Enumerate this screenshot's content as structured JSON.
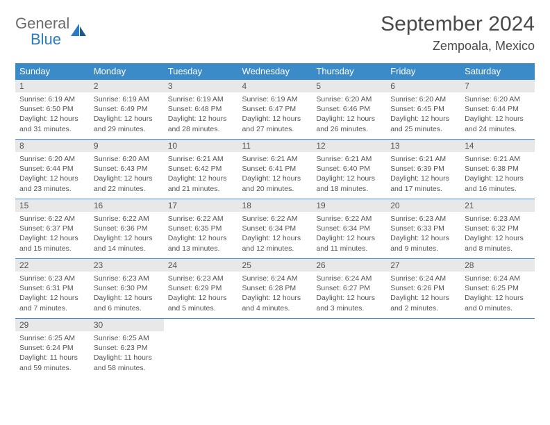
{
  "logo": {
    "word1": "General",
    "word2": "Blue"
  },
  "title": "September 2024",
  "location": "Zempoala, Mexico",
  "colors": {
    "header_bg": "#3b8bc8",
    "header_fg": "#ffffff",
    "daynum_bg": "#e8e8e8",
    "border": "#3b8bc8",
    "text": "#4a4a4a",
    "logo_gray": "#6b6b6b",
    "logo_blue": "#2a7bbf"
  },
  "daysOfWeek": [
    "Sunday",
    "Monday",
    "Tuesday",
    "Wednesday",
    "Thursday",
    "Friday",
    "Saturday"
  ],
  "weeks": [
    [
      {
        "n": "1",
        "sunrise": "Sunrise: 6:19 AM",
        "sunset": "Sunset: 6:50 PM",
        "daylight": "Daylight: 12 hours and 31 minutes."
      },
      {
        "n": "2",
        "sunrise": "Sunrise: 6:19 AM",
        "sunset": "Sunset: 6:49 PM",
        "daylight": "Daylight: 12 hours and 29 minutes."
      },
      {
        "n": "3",
        "sunrise": "Sunrise: 6:19 AM",
        "sunset": "Sunset: 6:48 PM",
        "daylight": "Daylight: 12 hours and 28 minutes."
      },
      {
        "n": "4",
        "sunrise": "Sunrise: 6:19 AM",
        "sunset": "Sunset: 6:47 PM",
        "daylight": "Daylight: 12 hours and 27 minutes."
      },
      {
        "n": "5",
        "sunrise": "Sunrise: 6:20 AM",
        "sunset": "Sunset: 6:46 PM",
        "daylight": "Daylight: 12 hours and 26 minutes."
      },
      {
        "n": "6",
        "sunrise": "Sunrise: 6:20 AM",
        "sunset": "Sunset: 6:45 PM",
        "daylight": "Daylight: 12 hours and 25 minutes."
      },
      {
        "n": "7",
        "sunrise": "Sunrise: 6:20 AM",
        "sunset": "Sunset: 6:44 PM",
        "daylight": "Daylight: 12 hours and 24 minutes."
      }
    ],
    [
      {
        "n": "8",
        "sunrise": "Sunrise: 6:20 AM",
        "sunset": "Sunset: 6:44 PM",
        "daylight": "Daylight: 12 hours and 23 minutes."
      },
      {
        "n": "9",
        "sunrise": "Sunrise: 6:20 AM",
        "sunset": "Sunset: 6:43 PM",
        "daylight": "Daylight: 12 hours and 22 minutes."
      },
      {
        "n": "10",
        "sunrise": "Sunrise: 6:21 AM",
        "sunset": "Sunset: 6:42 PM",
        "daylight": "Daylight: 12 hours and 21 minutes."
      },
      {
        "n": "11",
        "sunrise": "Sunrise: 6:21 AM",
        "sunset": "Sunset: 6:41 PM",
        "daylight": "Daylight: 12 hours and 20 minutes."
      },
      {
        "n": "12",
        "sunrise": "Sunrise: 6:21 AM",
        "sunset": "Sunset: 6:40 PM",
        "daylight": "Daylight: 12 hours and 18 minutes."
      },
      {
        "n": "13",
        "sunrise": "Sunrise: 6:21 AM",
        "sunset": "Sunset: 6:39 PM",
        "daylight": "Daylight: 12 hours and 17 minutes."
      },
      {
        "n": "14",
        "sunrise": "Sunrise: 6:21 AM",
        "sunset": "Sunset: 6:38 PM",
        "daylight": "Daylight: 12 hours and 16 minutes."
      }
    ],
    [
      {
        "n": "15",
        "sunrise": "Sunrise: 6:22 AM",
        "sunset": "Sunset: 6:37 PM",
        "daylight": "Daylight: 12 hours and 15 minutes."
      },
      {
        "n": "16",
        "sunrise": "Sunrise: 6:22 AM",
        "sunset": "Sunset: 6:36 PM",
        "daylight": "Daylight: 12 hours and 14 minutes."
      },
      {
        "n": "17",
        "sunrise": "Sunrise: 6:22 AM",
        "sunset": "Sunset: 6:35 PM",
        "daylight": "Daylight: 12 hours and 13 minutes."
      },
      {
        "n": "18",
        "sunrise": "Sunrise: 6:22 AM",
        "sunset": "Sunset: 6:34 PM",
        "daylight": "Daylight: 12 hours and 12 minutes."
      },
      {
        "n": "19",
        "sunrise": "Sunrise: 6:22 AM",
        "sunset": "Sunset: 6:34 PM",
        "daylight": "Daylight: 12 hours and 11 minutes."
      },
      {
        "n": "20",
        "sunrise": "Sunrise: 6:23 AM",
        "sunset": "Sunset: 6:33 PM",
        "daylight": "Daylight: 12 hours and 9 minutes."
      },
      {
        "n": "21",
        "sunrise": "Sunrise: 6:23 AM",
        "sunset": "Sunset: 6:32 PM",
        "daylight": "Daylight: 12 hours and 8 minutes."
      }
    ],
    [
      {
        "n": "22",
        "sunrise": "Sunrise: 6:23 AM",
        "sunset": "Sunset: 6:31 PM",
        "daylight": "Daylight: 12 hours and 7 minutes."
      },
      {
        "n": "23",
        "sunrise": "Sunrise: 6:23 AM",
        "sunset": "Sunset: 6:30 PM",
        "daylight": "Daylight: 12 hours and 6 minutes."
      },
      {
        "n": "24",
        "sunrise": "Sunrise: 6:23 AM",
        "sunset": "Sunset: 6:29 PM",
        "daylight": "Daylight: 12 hours and 5 minutes."
      },
      {
        "n": "25",
        "sunrise": "Sunrise: 6:24 AM",
        "sunset": "Sunset: 6:28 PM",
        "daylight": "Daylight: 12 hours and 4 minutes."
      },
      {
        "n": "26",
        "sunrise": "Sunrise: 6:24 AM",
        "sunset": "Sunset: 6:27 PM",
        "daylight": "Daylight: 12 hours and 3 minutes."
      },
      {
        "n": "27",
        "sunrise": "Sunrise: 6:24 AM",
        "sunset": "Sunset: 6:26 PM",
        "daylight": "Daylight: 12 hours and 2 minutes."
      },
      {
        "n": "28",
        "sunrise": "Sunrise: 6:24 AM",
        "sunset": "Sunset: 6:25 PM",
        "daylight": "Daylight: 12 hours and 0 minutes."
      }
    ],
    [
      {
        "n": "29",
        "sunrise": "Sunrise: 6:25 AM",
        "sunset": "Sunset: 6:24 PM",
        "daylight": "Daylight: 11 hours and 59 minutes."
      },
      {
        "n": "30",
        "sunrise": "Sunrise: 6:25 AM",
        "sunset": "Sunset: 6:23 PM",
        "daylight": "Daylight: 11 hours and 58 minutes."
      },
      {
        "empty": true
      },
      {
        "empty": true
      },
      {
        "empty": true
      },
      {
        "empty": true
      },
      {
        "empty": true
      }
    ]
  ]
}
